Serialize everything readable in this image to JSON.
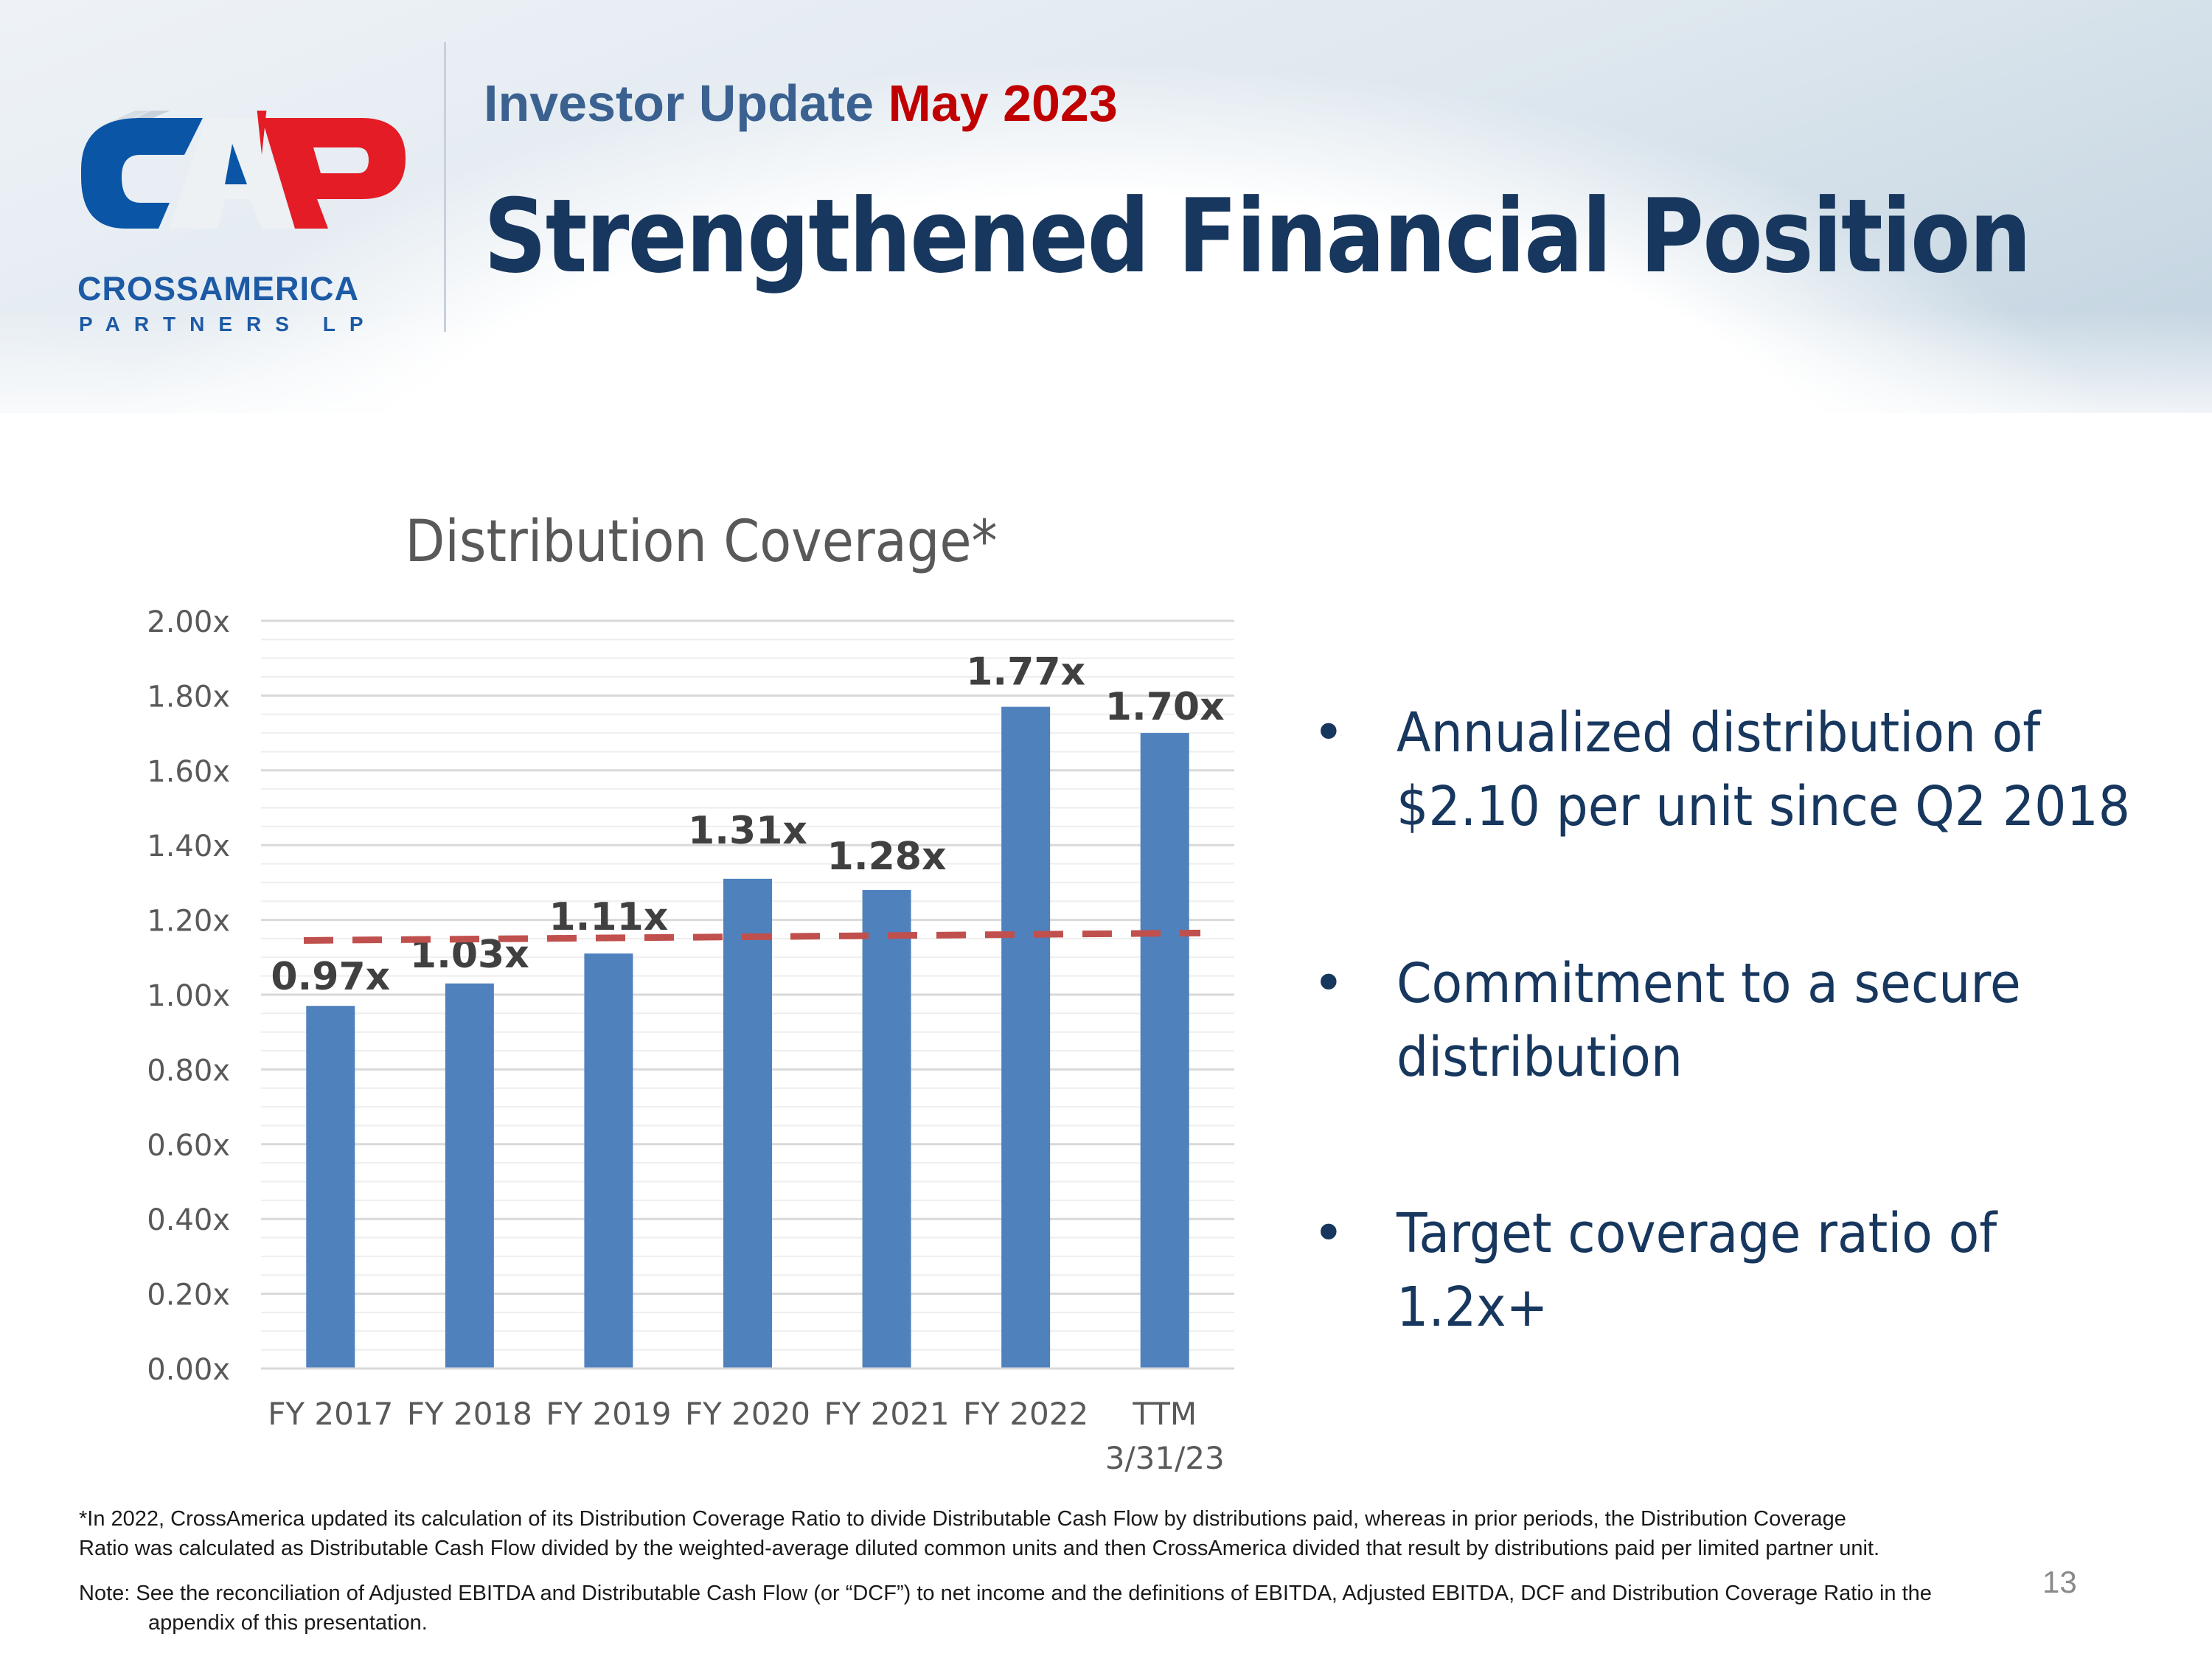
{
  "header": {
    "kicker_main": "Investor Update",
    "kicker_date": "May 2023",
    "title": "Strengthened Financial Position"
  },
  "logo": {
    "mark": "CAP",
    "wordmark": "CROSSAMERICA",
    "sub": "PARTNERS LP"
  },
  "bullets": [
    {
      "line1": "Annualized distribution of",
      "line2": "$2.10  per unit since Q2 2018"
    },
    {
      "line1": "Commitment to a secure",
      "line2": "distribution"
    },
    {
      "line1": "Target coverage ratio of 1.2x+",
      "line2": ""
    }
  ],
  "footnotes": {
    "asterisk_line1": "*In 2022, CrossAmerica updated its calculation of its Distribution Coverage Ratio to divide Distributable Cash Flow by distributions paid, whereas in prior periods, the Distribution Coverage",
    "asterisk_line2": "Ratio was calculated as Distributable Cash Flow divided by the weighted-average diluted common units and then CrossAmerica divided that result by distributions paid per limited partner unit.",
    "note_line1": "Note: See the reconciliation of Adjusted EBITDA and Distributable Cash Flow (or “DCF”) to net income and the definitions of EBITDA, Adjusted EBITDA, DCF and Distribution Coverage Ratio in the",
    "note_line2": "appendix of this presentation."
  },
  "page_number": "13",
  "colors": {
    "bar": "#4f81bd",
    "dashed_line": "#c0504d",
    "title": "#17375e",
    "accent_red": "#c00000"
  },
  "chart_data": {
    "type": "bar",
    "title": "Distribution Coverage*",
    "categories": [
      "FY 2017",
      "FY 2018",
      "FY 2019",
      "FY 2020",
      "FY 2021",
      "FY 2022",
      "TTM 3/31/23"
    ],
    "category_lines": [
      [
        "FY 2017"
      ],
      [
        "FY 2018"
      ],
      [
        "FY 2019"
      ],
      [
        "FY 2020"
      ],
      [
        "FY 2021"
      ],
      [
        "FY 2022"
      ],
      [
        "TTM",
        "3/31/23"
      ]
    ],
    "values": [
      0.97,
      1.03,
      1.11,
      1.31,
      1.28,
      1.77,
      1.7
    ],
    "data_labels": [
      "0.97x",
      "1.03x",
      "1.11x",
      "1.31x",
      "1.28x",
      "1.77x",
      "1.70x"
    ],
    "ylim": [
      0,
      2.0
    ],
    "yticks": [
      "0.00x",
      "0.20x",
      "0.40x",
      "0.60x",
      "0.80x",
      "1.00x",
      "1.20x",
      "1.40x",
      "1.60x",
      "1.80x",
      "2.00x"
    ],
    "grid": true,
    "reference_line": {
      "style": "dashed",
      "start": 1.145,
      "end": 1.165
    },
    "xlabel": "",
    "ylabel": ""
  }
}
